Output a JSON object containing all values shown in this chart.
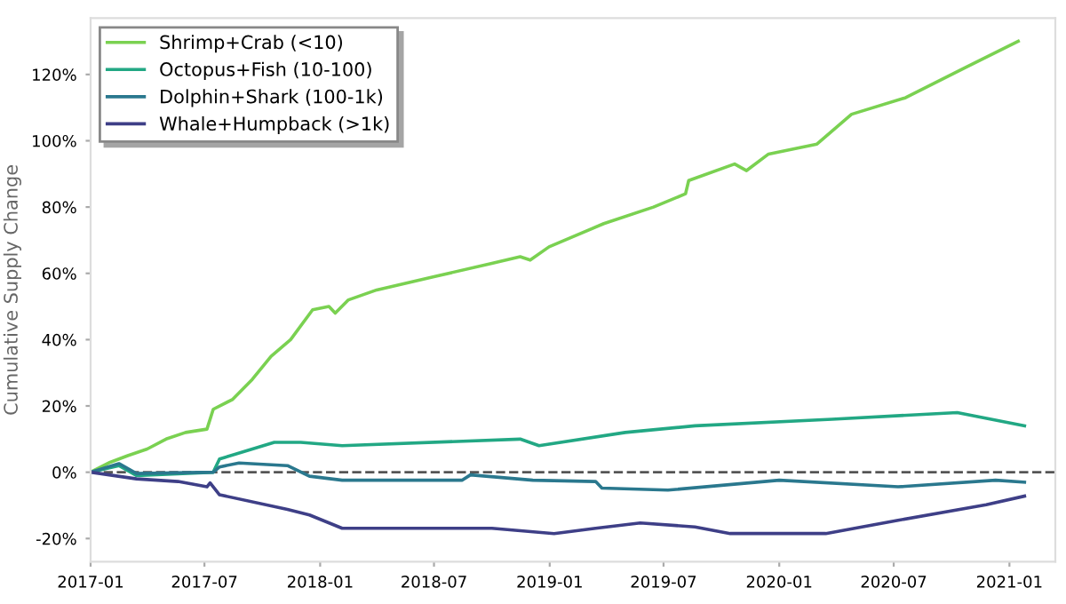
{
  "chart_data": {
    "type": "line",
    "ylabel": "Cumulative Supply Change",
    "xlim": [
      "2017-01-01",
      "2021-03-15"
    ],
    "ylim": [
      -27,
      137
    ],
    "xticks": [
      {
        "value": "2017-01",
        "label": "2017-01"
      },
      {
        "value": "2017-07",
        "label": "2017-07"
      },
      {
        "value": "2018-01",
        "label": "2018-01"
      },
      {
        "value": "2018-07",
        "label": "2018-07"
      },
      {
        "value": "2019-01",
        "label": "2019-01"
      },
      {
        "value": "2019-07",
        "label": "2019-07"
      },
      {
        "value": "2020-01",
        "label": "2020-01"
      },
      {
        "value": "2020-07",
        "label": "2020-07"
      },
      {
        "value": "2021-01",
        "label": "2021-01"
      }
    ],
    "yticks": [
      {
        "value": -20,
        "label": "-20%"
      },
      {
        "value": 0,
        "label": "0%"
      },
      {
        "value": 20,
        "label": "20%"
      },
      {
        "value": 40,
        "label": "40%"
      },
      {
        "value": 60,
        "label": "60%"
      },
      {
        "value": 80,
        "label": "80%"
      },
      {
        "value": 100,
        "label": "100%"
      },
      {
        "value": 120,
        "label": "120%"
      }
    ],
    "grid": false,
    "legend": "top left",
    "marker": "none",
    "line_style": "solid",
    "ref_lines": [
      {
        "axis": "y",
        "value": 0,
        "color": "#555555",
        "line_style": "dashed"
      }
    ],
    "series": [
      {
        "name": "Shrimp+Crab (<10)",
        "color": "#7ad151",
        "x": [
          "2017-01-01",
          "2017-02-01",
          "2017-03-01",
          "2017-04-01",
          "2017-05-01",
          "2017-06-01",
          "2017-07-05",
          "2017-07-15",
          "2017-08-15",
          "2017-09-15",
          "2017-10-15",
          "2017-11-15",
          "2017-12-20",
          "2018-01-15",
          "2018-01-25",
          "2018-02-15",
          "2018-04-01",
          "2018-07-01",
          "2018-10-01",
          "2018-11-15",
          "2018-12-01",
          "2018-12-31",
          "2019-03-28",
          "2019-06-15",
          "2019-08-05",
          "2019-08-10",
          "2019-10-22",
          "2019-11-10",
          "2019-12-15",
          "2020-03-01",
          "2020-04-25",
          "2020-07-20",
          "2020-10-22",
          "2021-01-15"
        ],
        "values": [
          0,
          3,
          5,
          7,
          10,
          12,
          13,
          19,
          22,
          28,
          35,
          40,
          49,
          50,
          48,
          52,
          55,
          59,
          63,
          65,
          64,
          68,
          75,
          80,
          84,
          88,
          93,
          91,
          96,
          99,
          108,
          113,
          122,
          130
        ]
      },
      {
        "name": "Octopus+Fish (10-100)",
        "color": "#22a884",
        "x": [
          "2017-01-01",
          "2017-02-15",
          "2017-03-15",
          "2017-07-15",
          "2017-07-25",
          "2017-10-20",
          "2017-12-01",
          "2018-02-05",
          "2018-11-15",
          "2018-12-15",
          "2019-05-01",
          "2019-08-20",
          "2020-03-25",
          "2020-10-10",
          "2021-01-25"
        ],
        "values": [
          0,
          2,
          -1,
          0,
          4,
          9,
          9,
          8,
          10,
          8,
          12,
          14,
          16,
          18,
          14
        ]
      },
      {
        "name": "Dolphin+Shark (100-1k)",
        "color": "#2a788e",
        "x": [
          "2017-01-01",
          "2017-02-15",
          "2017-03-15",
          "2017-07-15",
          "2017-07-25",
          "2017-08-25",
          "2017-11-10",
          "2017-12-15",
          "2018-02-05",
          "2018-08-15",
          "2018-08-28",
          "2018-12-05",
          "2019-03-15",
          "2019-03-25",
          "2019-07-08",
          "2020-01-01",
          "2020-07-08",
          "2020-12-10",
          "2021-01-25"
        ],
        "values": [
          0,
          2.6,
          -0.4,
          0,
          1.6,
          2.8,
          2,
          -1.2,
          -2.4,
          -2.4,
          -0.8,
          -2.4,
          -2.8,
          -4.8,
          -5.4,
          -2.4,
          -4.4,
          -2.4,
          -3
        ]
      },
      {
        "name": "Whale+Humpback (>1k)",
        "color": "#3e3f87",
        "x": [
          "2017-01-01",
          "2017-03-15",
          "2017-05-20",
          "2017-07-05",
          "2017-07-10",
          "2017-07-25",
          "2017-11-10",
          "2017-12-15",
          "2018-02-05",
          "2018-10-01",
          "2019-01-08",
          "2019-03-15",
          "2019-05-25",
          "2019-08-20",
          "2019-10-15",
          "2020-03-15",
          "2020-07-08",
          "2020-11-25",
          "2021-01-25"
        ],
        "values": [
          0,
          -2,
          -2.8,
          -4.4,
          -3.2,
          -6.8,
          -11.2,
          -12.9,
          -16.9,
          -16.9,
          -18.5,
          -16.9,
          -15.3,
          -16.5,
          -18.5,
          -18.5,
          -14.5,
          -9.8,
          -7.2
        ]
      }
    ]
  }
}
